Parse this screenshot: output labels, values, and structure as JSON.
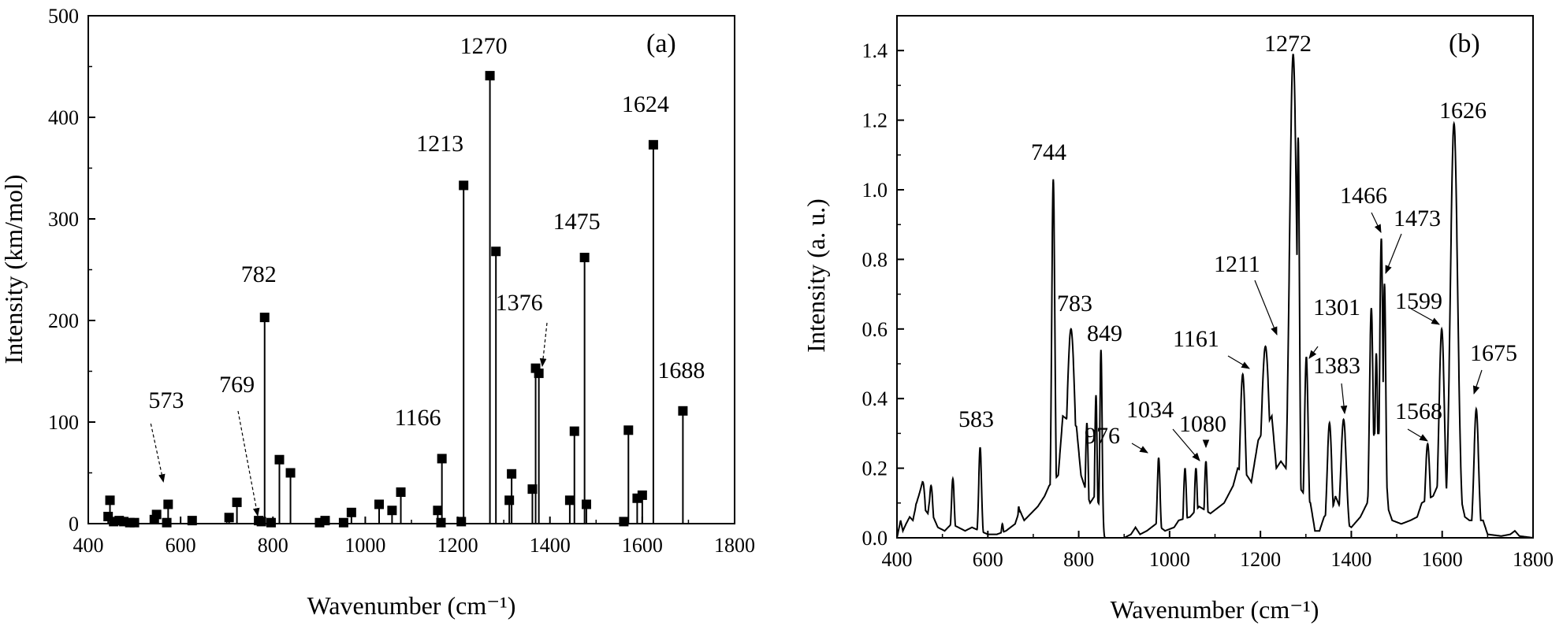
{
  "chart_data": [
    {
      "type": "stick",
      "panel_label": "(a)",
      "xlabel": "Wavenumber (cm⁻¹)",
      "ylabel": "Intensity (km/mol)",
      "xlim": [
        400,
        1800
      ],
      "ylim": [
        0,
        500
      ],
      "xticks": [
        400,
        600,
        800,
        1000,
        1200,
        1400,
        1600,
        1800
      ],
      "yticks": [
        0,
        100,
        200,
        300,
        400,
        500
      ],
      "sticks": [
        {
          "x": 443,
          "y": 7
        },
        {
          "x": 447,
          "y": 23
        },
        {
          "x": 455,
          "y": 2
        },
        {
          "x": 467,
          "y": 3
        },
        {
          "x": 477,
          "y": 2
        },
        {
          "x": 490,
          "y": 1
        },
        {
          "x": 500,
          "y": 1
        },
        {
          "x": 543,
          "y": 4
        },
        {
          "x": 548,
          "y": 9
        },
        {
          "x": 570,
          "y": 1
        },
        {
          "x": 573,
          "y": 19
        },
        {
          "x": 625,
          "y": 3
        },
        {
          "x": 705,
          "y": 6
        },
        {
          "x": 722,
          "y": 21
        },
        {
          "x": 769,
          "y": 3
        },
        {
          "x": 775,
          "y": 2
        },
        {
          "x": 782,
          "y": 203
        },
        {
          "x": 796,
          "y": 1
        },
        {
          "x": 814,
          "y": 63
        },
        {
          "x": 838,
          "y": 50
        },
        {
          "x": 901,
          "y": 1
        },
        {
          "x": 913,
          "y": 3
        },
        {
          "x": 953,
          "y": 1
        },
        {
          "x": 970,
          "y": 11
        },
        {
          "x": 1030,
          "y": 19
        },
        {
          "x": 1058,
          "y": 13
        },
        {
          "x": 1077,
          "y": 31
        },
        {
          "x": 1157,
          "y": 13
        },
        {
          "x": 1164,
          "y": 1
        },
        {
          "x": 1166,
          "y": 64
        },
        {
          "x": 1208,
          "y": 2
        },
        {
          "x": 1213,
          "y": 333
        },
        {
          "x": 1270,
          "y": 441
        },
        {
          "x": 1283,
          "y": 268
        },
        {
          "x": 1312,
          "y": 23
        },
        {
          "x": 1317,
          "y": 49
        },
        {
          "x": 1362,
          "y": 34
        },
        {
          "x": 1369,
          "y": 153
        },
        {
          "x": 1376,
          "y": 148
        },
        {
          "x": 1443,
          "y": 23
        },
        {
          "x": 1453,
          "y": 91
        },
        {
          "x": 1475,
          "y": 262
        },
        {
          "x": 1479,
          "y": 19
        },
        {
          "x": 1560,
          "y": 2
        },
        {
          "x": 1570,
          "y": 92
        },
        {
          "x": 1589,
          "y": 25
        },
        {
          "x": 1600,
          "y": 28
        },
        {
          "x": 1624,
          "y": 373
        },
        {
          "x": 1688,
          "y": 111
        }
      ],
      "annotations": [
        {
          "text": "573",
          "x": 573
        },
        {
          "text": "769",
          "x": 769
        },
        {
          "text": "782",
          "x": 782
        },
        {
          "text": "1166",
          "x": 1166
        },
        {
          "text": "1213",
          "x": 1213
        },
        {
          "text": "1270",
          "x": 1270
        },
        {
          "text": "1376",
          "x": 1376
        },
        {
          "text": "1475",
          "x": 1475
        },
        {
          "text": "1624",
          "x": 1624
        },
        {
          "text": "1688",
          "x": 1688
        }
      ]
    },
    {
      "type": "line",
      "panel_label": "(b)",
      "xlabel": "Wavenumber (cm⁻¹)",
      "ylabel": "Intensity (a. u.)",
      "xlim": [
        400,
        1800
      ],
      "ylim": [
        0,
        1.5
      ],
      "xticks": [
        400,
        600,
        800,
        1000,
        1200,
        1400,
        1600,
        1800
      ],
      "yticks": [
        0.0,
        0.2,
        0.4,
        0.6,
        0.8,
        1.0,
        1.2,
        1.4
      ],
      "ytick_labels": [
        "0.0",
        "0.2",
        "0.4",
        "0.6",
        "0.8",
        "1.0",
        "1.2",
        "1.4"
      ],
      "baseline": [
        [
          400,
          0.0
        ],
        [
          408,
          0.05
        ],
        [
          413,
          0.02
        ],
        [
          420,
          0.04
        ],
        [
          428,
          0.06
        ],
        [
          435,
          0.05
        ],
        [
          443,
          0.1
        ],
        [
          450,
          0.13
        ],
        [
          456,
          0.16
        ],
        [
          462,
          0.08
        ],
        [
          468,
          0.07
        ],
        [
          475,
          0.14
        ],
        [
          480,
          0.06
        ],
        [
          490,
          0.03
        ],
        [
          505,
          0.02
        ],
        [
          520,
          0.04
        ],
        [
          535,
          0.03
        ],
        [
          550,
          0.02
        ],
        [
          565,
          0.03
        ],
        [
          600,
          0.01
        ],
        [
          620,
          0.01
        ],
        [
          640,
          0.02
        ],
        [
          660,
          0.04
        ],
        [
          670,
          0.08
        ],
        [
          680,
          0.05
        ],
        [
          695,
          0.07
        ],
        [
          710,
          0.09
        ],
        [
          725,
          0.12
        ],
        [
          735,
          0.15
        ],
        [
          755,
          0.18
        ],
        [
          765,
          0.35
        ],
        [
          795,
          0.32
        ],
        [
          805,
          0.18
        ],
        [
          825,
          0.1
        ],
        [
          835,
          0.12
        ],
        [
          852,
          0.08
        ],
        [
          856,
          0.0
        ],
        [
          900,
          0.0
        ],
        [
          915,
          0.01
        ],
        [
          925,
          0.03
        ],
        [
          935,
          0.01
        ],
        [
          950,
          0.02
        ],
        [
          970,
          0.04
        ],
        [
          990,
          0.02
        ],
        [
          1010,
          0.03
        ],
        [
          1020,
          0.05
        ],
        [
          1045,
          0.06
        ],
        [
          1065,
          0.09
        ],
        [
          1090,
          0.07
        ],
        [
          1100,
          0.08
        ],
        [
          1120,
          0.1
        ],
        [
          1140,
          0.15
        ],
        [
          1150,
          0.2
        ],
        [
          1170,
          0.18
        ],
        [
          1180,
          0.16
        ],
        [
          1195,
          0.28
        ],
        [
          1225,
          0.35
        ],
        [
          1235,
          0.2
        ],
        [
          1245,
          0.22
        ],
        [
          1310,
          0.1
        ],
        [
          1320,
          0.02
        ],
        [
          1330,
          0.02
        ],
        [
          1340,
          0.06
        ],
        [
          1360,
          0.09
        ],
        [
          1365,
          0.12
        ],
        [
          1390,
          0.04
        ],
        [
          1400,
          0.03
        ],
        [
          1420,
          0.06
        ],
        [
          1435,
          0.1
        ],
        [
          1450,
          0.3
        ],
        [
          1470,
          0.3
        ],
        [
          1482,
          0.08
        ],
        [
          1490,
          0.05
        ],
        [
          1510,
          0.04
        ],
        [
          1530,
          0.05
        ],
        [
          1545,
          0.06
        ],
        [
          1555,
          0.1
        ],
        [
          1580,
          0.12
        ],
        [
          1590,
          0.15
        ],
        [
          1610,
          0.14
        ],
        [
          1640,
          0.12
        ],
        [
          1650,
          0.06
        ],
        [
          1660,
          0.05
        ],
        [
          1690,
          0.05
        ],
        [
          1700,
          0.01
        ],
        [
          1730,
          0.005
        ],
        [
          1750,
          0.01
        ],
        [
          1760,
          0.02
        ],
        [
          1770,
          0.005
        ],
        [
          1800,
          0.0
        ]
      ],
      "peaks": [
        {
          "x": 443,
          "y": 0.1,
          "w": 4
        },
        {
          "x": 457,
          "y": 0.16,
          "w": 5
        },
        {
          "x": 475,
          "y": 0.15,
          "w": 4
        },
        {
          "x": 523,
          "y": 0.17,
          "w": 3
        },
        {
          "x": 583,
          "y": 0.26,
          "w": 3
        },
        {
          "x": 632,
          "y": 0.04,
          "w": 2
        },
        {
          "x": 668,
          "y": 0.09,
          "w": 2
        },
        {
          "x": 744,
          "y": 1.03,
          "w": 3.5
        },
        {
          "x": 783,
          "y": 0.6,
          "w": 9
        },
        {
          "x": 818,
          "y": 0.33,
          "w": 3
        },
        {
          "x": 838,
          "y": 0.41,
          "w": 2.5
        },
        {
          "x": 849,
          "y": 0.54,
          "w": 2.5
        },
        {
          "x": 976,
          "y": 0.23,
          "w": 3
        },
        {
          "x": 1034,
          "y": 0.2,
          "w": 3
        },
        {
          "x": 1058,
          "y": 0.2,
          "w": 3
        },
        {
          "x": 1080,
          "y": 0.22,
          "w": 3
        },
        {
          "x": 1161,
          "y": 0.47,
          "w": 6
        },
        {
          "x": 1211,
          "y": 0.55,
          "w": 9
        },
        {
          "x": 1272,
          "y": 1.39,
          "w": 8
        },
        {
          "x": 1283,
          "y": 1.15,
          "w": 3
        },
        {
          "x": 1301,
          "y": 0.52,
          "w": 4
        },
        {
          "x": 1352,
          "y": 0.33,
          "w": 5
        },
        {
          "x": 1383,
          "y": 0.34,
          "w": 6
        },
        {
          "x": 1444,
          "y": 0.66,
          "w": 4
        },
        {
          "x": 1455,
          "y": 0.53,
          "w": 3
        },
        {
          "x": 1466,
          "y": 0.86,
          "w": 3.5
        },
        {
          "x": 1473,
          "y": 0.73,
          "w": 3
        },
        {
          "x": 1568,
          "y": 0.27,
          "w": 5
        },
        {
          "x": 1599,
          "y": 0.6,
          "w": 6
        },
        {
          "x": 1626,
          "y": 1.19,
          "w": 8
        },
        {
          "x": 1675,
          "y": 0.37,
          "w": 5
        }
      ],
      "annotations": [
        {
          "text": "583",
          "x": 583
        },
        {
          "text": "744",
          "x": 744
        },
        {
          "text": "783",
          "x": 783
        },
        {
          "text": "849",
          "x": 849
        },
        {
          "text": "976",
          "x": 976
        },
        {
          "text": "1034",
          "x": 1034
        },
        {
          "text": "1080",
          "x": 1080
        },
        {
          "text": "1161",
          "x": 1161
        },
        {
          "text": "1211",
          "x": 1211
        },
        {
          "text": "1272",
          "x": 1272
        },
        {
          "text": "1301",
          "x": 1301
        },
        {
          "text": "1383",
          "x": 1383
        },
        {
          "text": "1466",
          "x": 1466
        },
        {
          "text": "1473",
          "x": 1473
        },
        {
          "text": "1568",
          "x": 1568
        },
        {
          "text": "1599",
          "x": 1599
        },
        {
          "text": "1626",
          "x": 1626
        },
        {
          "text": "1675",
          "x": 1675
        }
      ]
    }
  ]
}
